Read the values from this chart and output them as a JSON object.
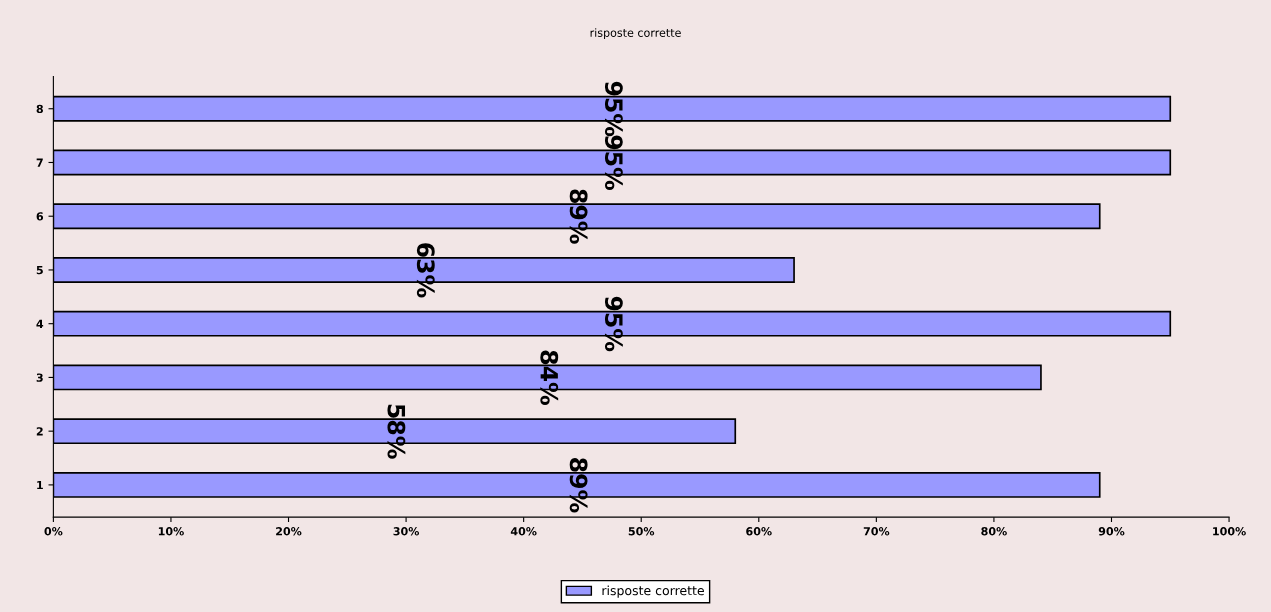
{
  "chart_data": {
    "type": "bar",
    "orientation": "horizontal",
    "title": "risposte corrette",
    "categories": [
      "8",
      "7",
      "6",
      "5",
      "4",
      "3",
      "2",
      "1"
    ],
    "series": [
      {
        "name": "risposte corrette",
        "color": "#9999ff",
        "values": [
          95,
          95,
          89,
          63,
          95,
          84,
          58,
          89
        ],
        "value_labels": [
          "95%",
          "95%",
          "89%",
          "63%",
          "95%",
          "84%",
          "58%",
          "89%"
        ]
      }
    ],
    "xlim": [
      0,
      100
    ],
    "xticks": [
      {
        "value": 0,
        "label": "0%"
      },
      {
        "value": 10,
        "label": "10%"
      },
      {
        "value": 20,
        "label": "20%"
      },
      {
        "value": 30,
        "label": "30%"
      },
      {
        "value": 40,
        "label": "40%"
      },
      {
        "value": 50,
        "label": "50%"
      },
      {
        "value": 60,
        "label": "60%"
      },
      {
        "value": 70,
        "label": "70%"
      },
      {
        "value": 80,
        "label": "80%"
      },
      {
        "value": 90,
        "label": "90%"
      },
      {
        "value": 100,
        "label": "100%"
      }
    ],
    "grid": false,
    "legend": "bottom"
  }
}
